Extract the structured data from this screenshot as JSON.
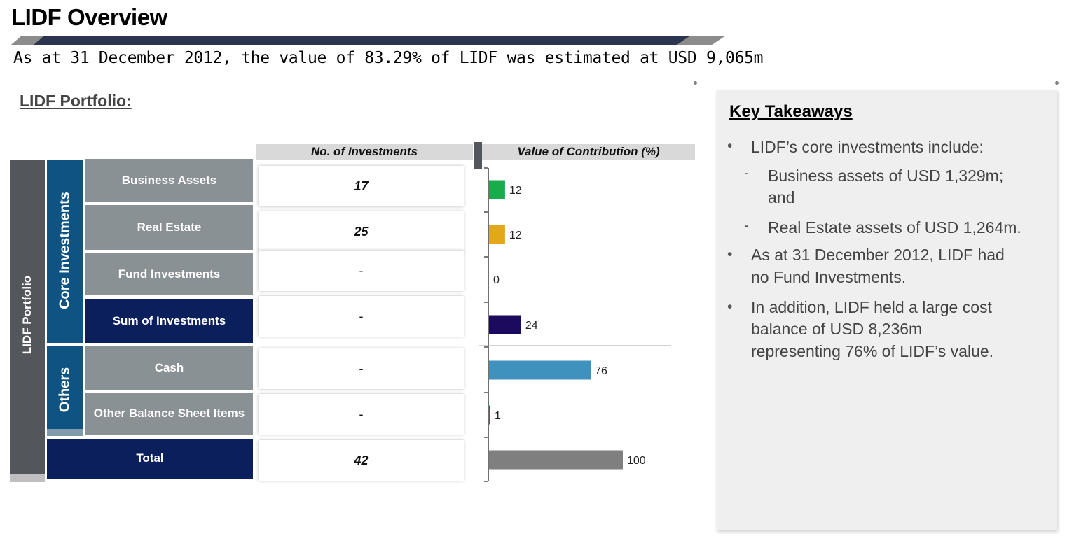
{
  "header": {
    "title": "LIDF Overview",
    "subtitle": "As at 31 December 2012, the value of 83.29% of LIDF was estimated at USD 9,065m"
  },
  "portfolio": {
    "heading": "LIDF Portfolio:",
    "side_label": "LIDF Portfolio",
    "group_core": "Core Investments",
    "group_others": "Others",
    "col_investments": "No. of Investments",
    "col_contribution": "Value of Contribution (%)",
    "rows": [
      {
        "label": "Business Assets",
        "count": "17"
      },
      {
        "label": "Real Estate",
        "count": "25"
      },
      {
        "label": "Fund Investments",
        "count": "-"
      },
      {
        "label": "Sum of Investments",
        "count": "-"
      },
      {
        "label": "Cash",
        "count": "-"
      },
      {
        "label": "Other Balance Sheet Items",
        "count": "-"
      },
      {
        "label": "Total",
        "count": "42"
      }
    ]
  },
  "chart_data": {
    "type": "bar",
    "orientation": "horizontal",
    "title": "Value of Contribution (%)",
    "categories": [
      "Business Assets",
      "Real Estate",
      "Fund Investments",
      "Sum of Investments",
      "Cash",
      "Other Balance Sheet Items",
      "Total"
    ],
    "values": [
      12,
      12,
      0,
      24,
      76,
      1,
      100
    ],
    "colors": [
      "#1aab4b",
      "#e2a81c",
      "#9e9e9e",
      "#1c0a5e",
      "#3f92bd",
      "#1b7a5a",
      "#7f7f7f"
    ],
    "xlim": [
      0,
      100
    ],
    "data_labels": true
  },
  "takeaways": {
    "title": "Key Takeaways",
    "bullet_1": "LIDF’s core investments include:",
    "sub_1a_line1": "Business assets of USD 1,329m;",
    "sub_1a_line2": "and",
    "sub_1b": "Real Estate assets of USD 1,264m.",
    "bullet_2_line1": "As at 31 December 2012, LIDF had",
    "bullet_2_line2": "no Fund Investments.",
    "bullet_3_line1": "In addition, LIDF held a large cost",
    "bullet_3_line2": "balance of USD 8,236m",
    "bullet_3_line3": "representing 76% of LIDF’s value."
  },
  "colors": {
    "navy": "#0a1f5c",
    "blue": "#0f5383",
    "grey_label": "#8a9195",
    "dark_grey": "#53565a",
    "panel": "#efefef"
  }
}
